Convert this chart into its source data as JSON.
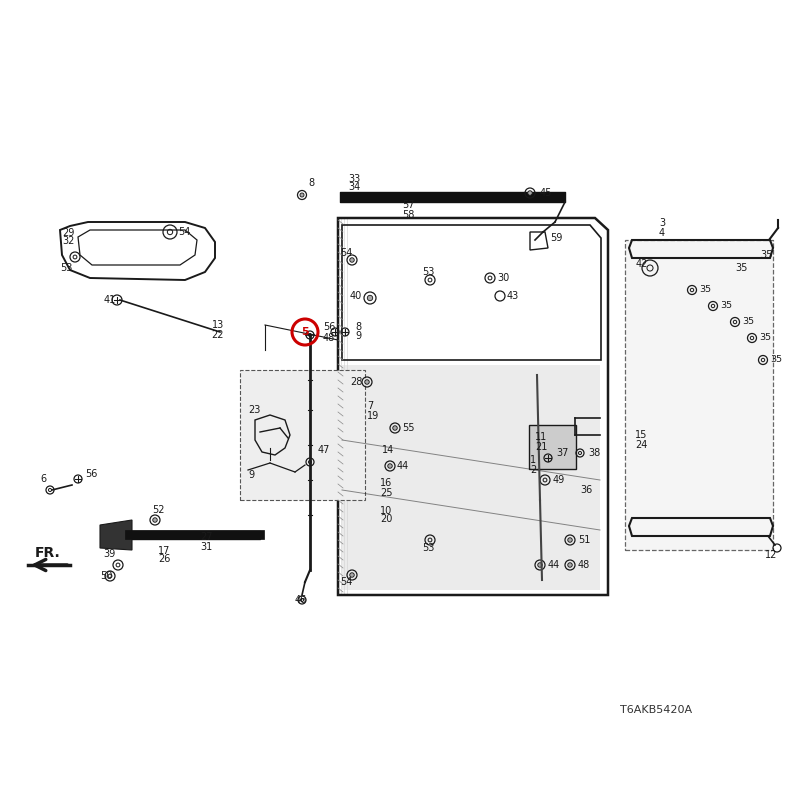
{
  "bg_color": "#ffffff",
  "line_color": "#1a1a1a",
  "diagram_code": "T6AKB5420A",
  "highlight_color": "#cc0000",
  "highlighted_part": "5",
  "fr_label": "FR."
}
